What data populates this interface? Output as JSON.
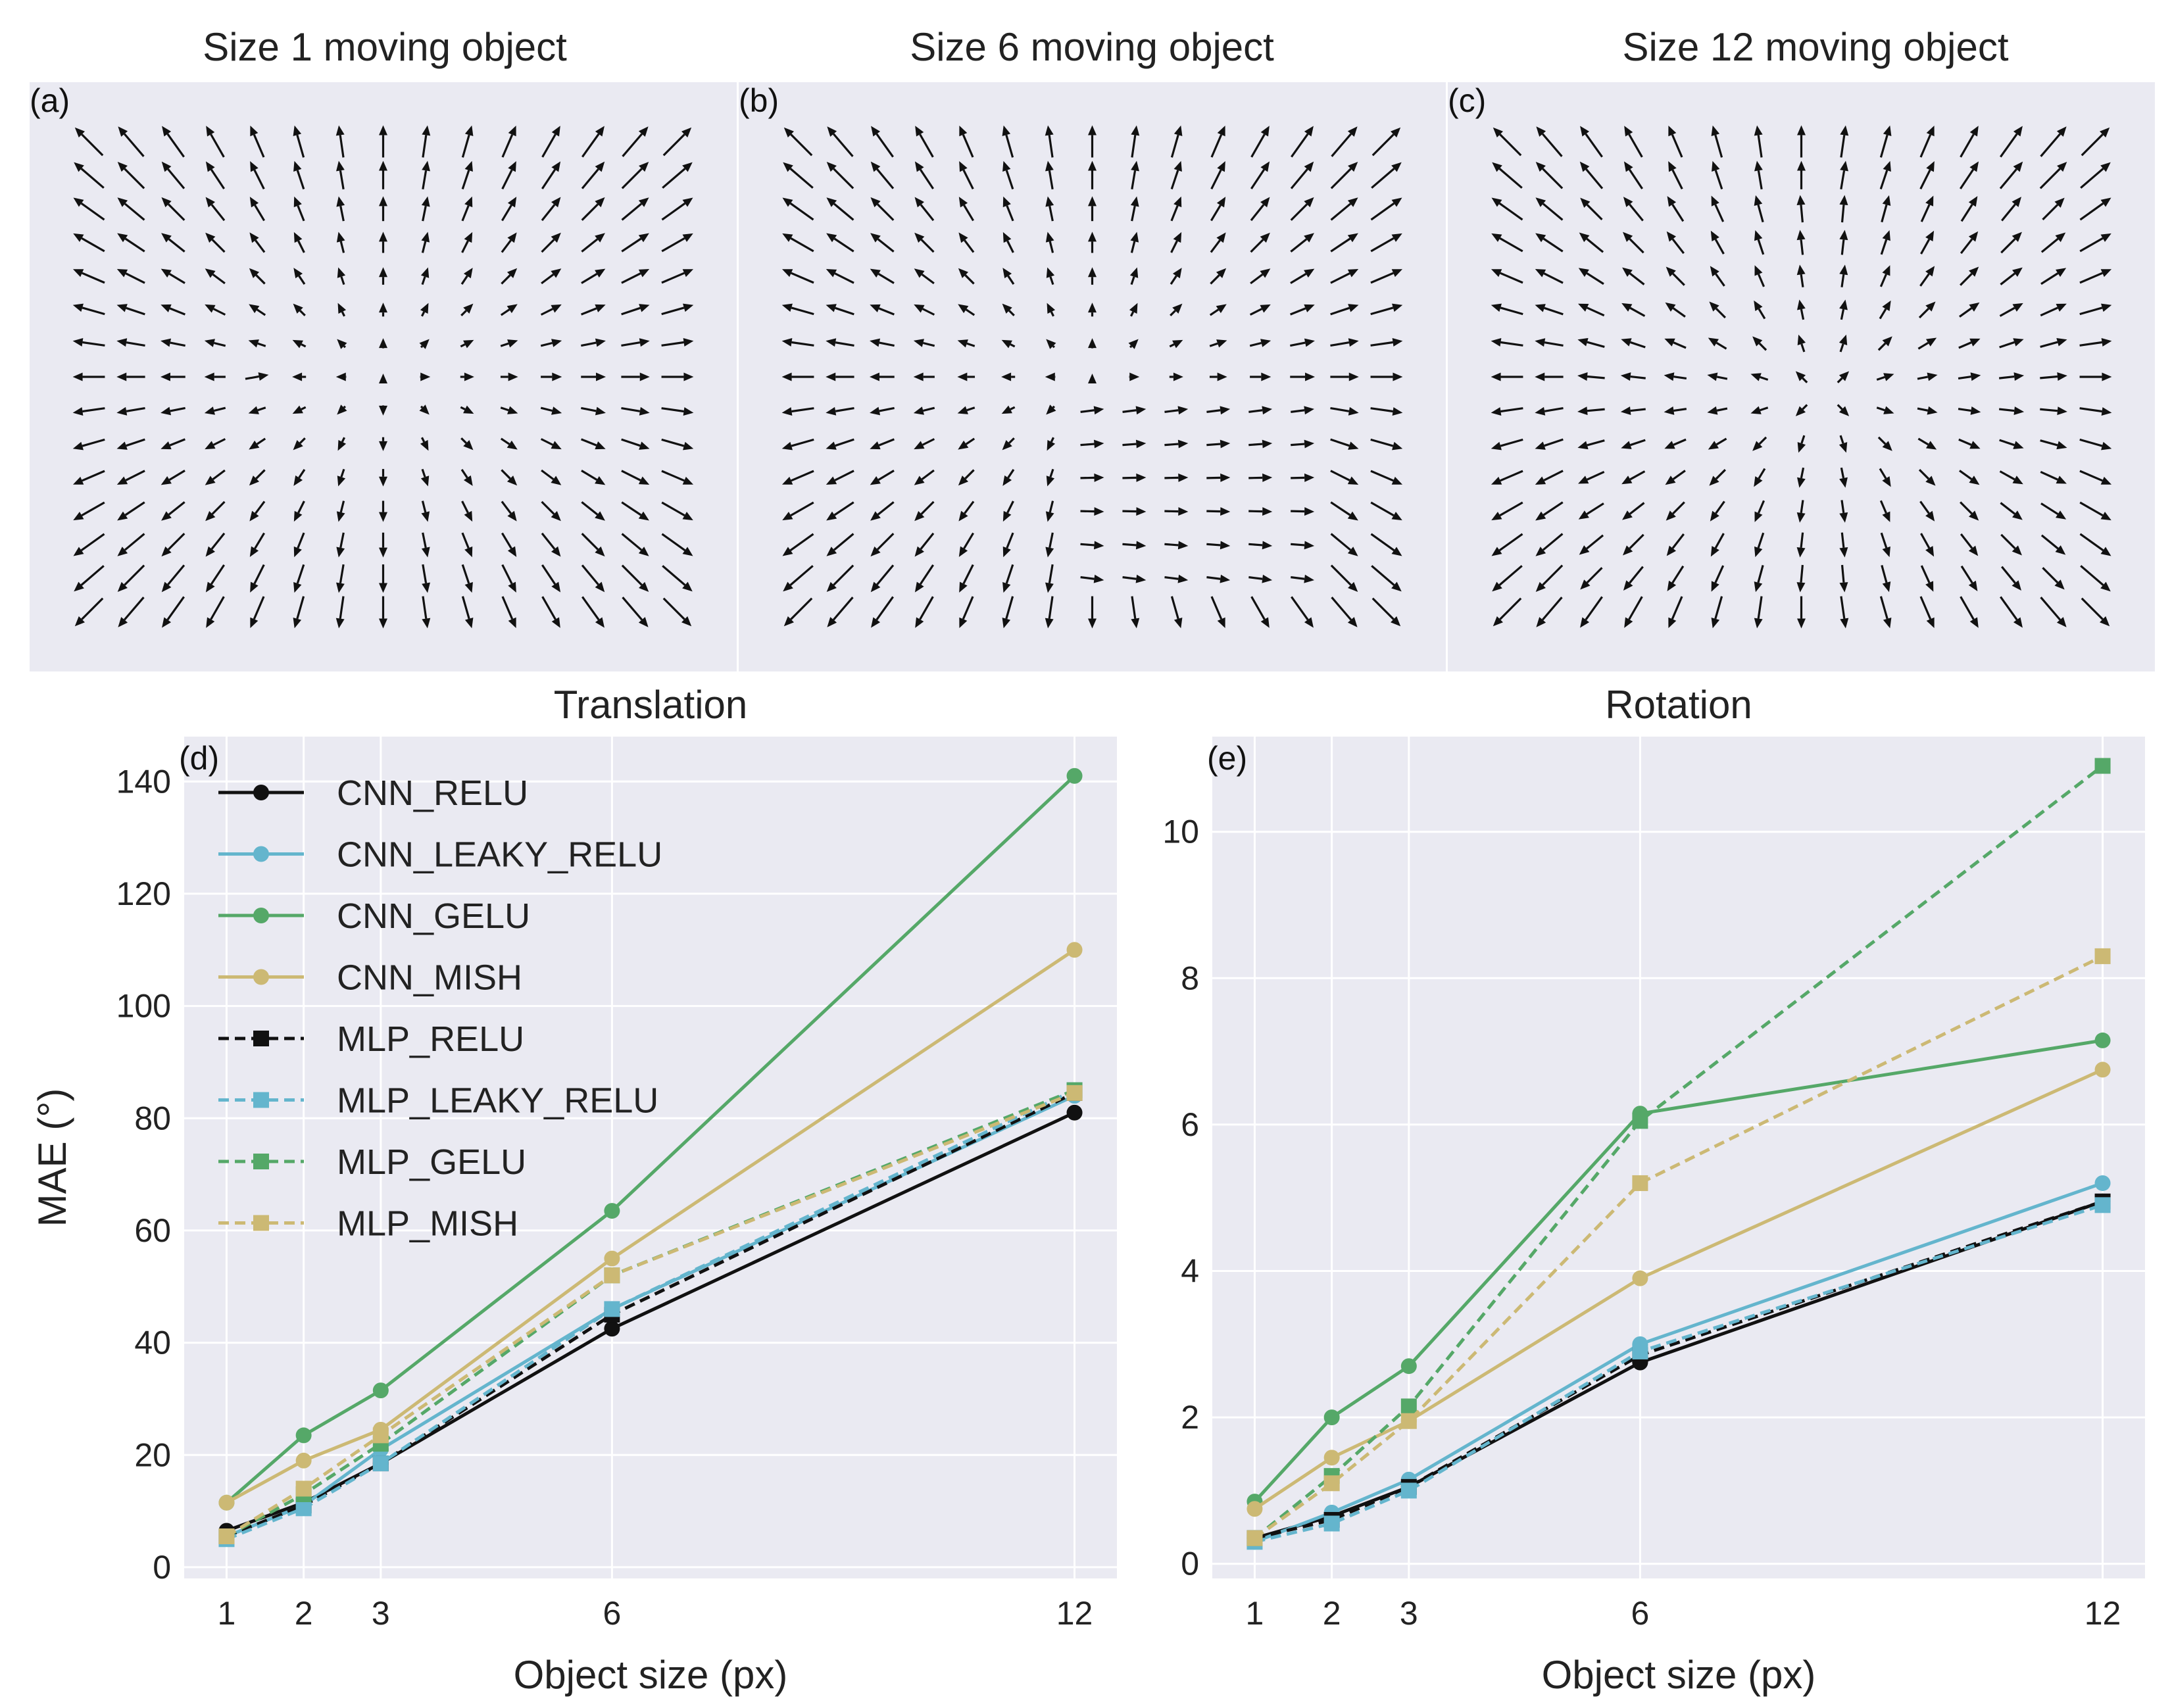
{
  "quiver_panels": [
    {
      "label": "(a)",
      "title": "Size 1 moving object",
      "object_size": 1
    },
    {
      "label": "(b)",
      "title": "Size 6 moving object",
      "object_size": 6
    },
    {
      "label": "(c)",
      "title": "Size 12 moving object",
      "object_size": 12
    }
  ],
  "colors": {
    "relu": "#111111",
    "leaky_relu": "#64b5cd",
    "gelu": "#55a868",
    "mish": "#ccb974",
    "axes_bg": "#eaeaf2",
    "grid": "#ffffff",
    "arrow": "#111111"
  },
  "chart_data": [
    {
      "type": "line",
      "label": "(d)",
      "title": "Translation",
      "xlabel": "Object size (px)",
      "ylabel": "MAE (°)",
      "x": [
        1,
        2,
        3,
        6,
        12
      ],
      "xticks": [
        "1",
        "2",
        "3",
        "6",
        "12"
      ],
      "xlim": [
        0.45,
        12.55
      ],
      "ylim": [
        -2,
        148
      ],
      "yticks": [
        "0",
        "20",
        "40",
        "60",
        "80",
        "100",
        "120",
        "140"
      ],
      "grid": true,
      "legend_position": "top-left",
      "series": [
        {
          "name": "CNN_RELU",
          "color": "#111111",
          "dashed": false,
          "marker": "circle",
          "values": [
            6.5,
            11.5,
            18.5,
            42.5,
            81
          ]
        },
        {
          "name": "CNN_LEAKY_RELU",
          "color": "#64b5cd",
          "dashed": false,
          "marker": "circle",
          "values": [
            5.5,
            11,
            21,
            46,
            84
          ]
        },
        {
          "name": "CNN_GELU",
          "color": "#55a868",
          "dashed": false,
          "marker": "circle",
          "values": [
            11.5,
            23.5,
            31.5,
            63.5,
            141
          ]
        },
        {
          "name": "CNN_MISH",
          "color": "#ccb974",
          "dashed": false,
          "marker": "circle",
          "values": [
            11.5,
            19,
            24.5,
            55,
            110
          ]
        },
        {
          "name": "MLP_RELU",
          "color": "#111111",
          "dashed": true,
          "marker": "square",
          "values": [
            5.5,
            11,
            18.5,
            45,
            84.5
          ]
        },
        {
          "name": "MLP_LEAKY_RELU",
          "color": "#64b5cd",
          "dashed": true,
          "marker": "square",
          "values": [
            5,
            10.5,
            18.5,
            46,
            85
          ]
        },
        {
          "name": "MLP_GELU",
          "color": "#55a868",
          "dashed": true,
          "marker": "square",
          "values": [
            5.5,
            13,
            22,
            52,
            85
          ]
        },
        {
          "name": "MLP_MISH",
          "color": "#ccb974",
          "dashed": true,
          "marker": "square",
          "values": [
            5.5,
            14,
            23.5,
            52,
            84.5
          ]
        }
      ]
    },
    {
      "type": "line",
      "label": "(e)",
      "title": "Rotation",
      "xlabel": "Object size (px)",
      "ylabel": "",
      "x": [
        1,
        2,
        3,
        6,
        12
      ],
      "xticks": [
        "1",
        "2",
        "3",
        "6",
        "12"
      ],
      "xlim": [
        0.45,
        12.55
      ],
      "ylim": [
        -0.2,
        11.3
      ],
      "yticks": [
        "0",
        "2",
        "4",
        "6",
        "8",
        "10"
      ],
      "grid": true,
      "series": [
        {
          "name": "CNN_RELU",
          "color": "#111111",
          "dashed": false,
          "marker": "circle",
          "values": [
            0.35,
            0.65,
            1.05,
            2.75,
            4.95
          ]
        },
        {
          "name": "CNN_LEAKY_RELU",
          "color": "#64b5cd",
          "dashed": false,
          "marker": "circle",
          "values": [
            0.3,
            0.7,
            1.15,
            3.0,
            5.2
          ]
        },
        {
          "name": "CNN_GELU",
          "color": "#55a868",
          "dashed": false,
          "marker": "circle",
          "values": [
            0.85,
            2.0,
            2.7,
            6.15,
            7.15
          ]
        },
        {
          "name": "CNN_MISH",
          "color": "#ccb974",
          "dashed": false,
          "marker": "circle",
          "values": [
            0.75,
            1.45,
            1.95,
            3.9,
            6.75
          ]
        },
        {
          "name": "MLP_RELU",
          "color": "#111111",
          "dashed": true,
          "marker": "square",
          "values": [
            0.35,
            0.6,
            1.05,
            2.85,
            4.95
          ]
        },
        {
          "name": "MLP_LEAKY_RELU",
          "color": "#64b5cd",
          "dashed": true,
          "marker": "square",
          "values": [
            0.3,
            0.55,
            1.0,
            2.9,
            4.9
          ]
        },
        {
          "name": "MLP_GELU",
          "color": "#55a868",
          "dashed": true,
          "marker": "square",
          "values": [
            0.35,
            1.2,
            2.15,
            6.05,
            10.9
          ]
        },
        {
          "name": "MLP_MISH",
          "color": "#ccb974",
          "dashed": true,
          "marker": "square",
          "values": [
            0.35,
            1.1,
            1.95,
            5.2,
            8.3
          ]
        }
      ]
    }
  ]
}
